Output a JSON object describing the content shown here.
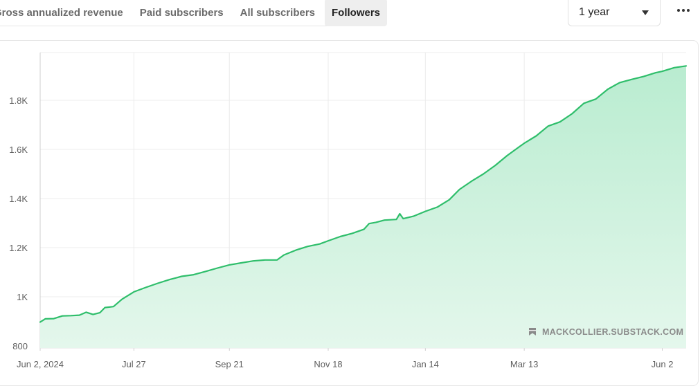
{
  "tabs": [
    {
      "label": "Gross annualized revenue",
      "active": false
    },
    {
      "label": "Paid subscribers",
      "active": false
    },
    {
      "label": "All subscribers",
      "active": false
    },
    {
      "label": "Followers",
      "active": true
    }
  ],
  "range_select": {
    "value": "1 year"
  },
  "colors": {
    "line": "#2fbe6b",
    "fill_top": "#b9ecd0",
    "fill_bottom": "#e4f7ec",
    "grid": "#ececec"
  },
  "chart_data": {
    "type": "area",
    "title": "",
    "xlabel": "",
    "ylabel": "",
    "ylim": [
      800,
      1950
    ],
    "grid": true,
    "y_ticks": [
      "800",
      "1K",
      "1.2K",
      "1.4K",
      "1.6K",
      "1.8K"
    ],
    "y_tick_values": [
      800,
      1000,
      1200,
      1400,
      1600,
      1800
    ],
    "x_ticks": [
      "Jun 2, 2024",
      "Jul 27",
      "Sep 21",
      "Nov 18",
      "Jan 14",
      "Mar 13",
      "Jun 2"
    ],
    "x_tick_values": [
      "2024-06-02",
      "2024-07-27",
      "2024-09-21",
      "2024-11-18",
      "2025-01-14",
      "2025-03-13",
      "2025-06-02"
    ],
    "x_range": [
      "2024-06-02",
      "2025-06-16"
    ],
    "series": [
      {
        "points": [
          [
            "2024-06-02",
            897
          ],
          [
            "2024-06-05",
            910
          ],
          [
            "2024-06-10",
            911
          ],
          [
            "2024-06-15",
            922
          ],
          [
            "2024-06-20",
            923
          ],
          [
            "2024-06-25",
            925
          ],
          [
            "2024-06-29",
            937
          ],
          [
            "2024-07-03",
            928
          ],
          [
            "2024-07-07",
            935
          ],
          [
            "2024-07-10",
            956
          ],
          [
            "2024-07-15",
            960
          ],
          [
            "2024-07-20",
            990
          ],
          [
            "2024-07-27",
            1020
          ],
          [
            "2024-08-03",
            1038
          ],
          [
            "2024-08-10",
            1055
          ],
          [
            "2024-08-17",
            1070
          ],
          [
            "2024-08-24",
            1083
          ],
          [
            "2024-08-31",
            1090
          ],
          [
            "2024-09-07",
            1103
          ],
          [
            "2024-09-14",
            1117
          ],
          [
            "2024-09-21",
            1130
          ],
          [
            "2024-09-28",
            1138
          ],
          [
            "2024-10-05",
            1146
          ],
          [
            "2024-10-12",
            1150
          ],
          [
            "2024-10-19",
            1150
          ],
          [
            "2024-10-23",
            1170
          ],
          [
            "2024-10-30",
            1190
          ],
          [
            "2024-11-06",
            1205
          ],
          [
            "2024-11-13",
            1215
          ],
          [
            "2024-11-18",
            1228
          ],
          [
            "2024-11-25",
            1245
          ],
          [
            "2024-12-02",
            1258
          ],
          [
            "2024-12-09",
            1275
          ],
          [
            "2024-12-12",
            1298
          ],
          [
            "2024-12-16",
            1303
          ],
          [
            "2024-12-21",
            1312
          ],
          [
            "2024-12-28",
            1315
          ],
          [
            "2024-12-30",
            1338
          ],
          [
            "2025-01-01",
            1318
          ],
          [
            "2025-01-07",
            1328
          ],
          [
            "2025-01-14",
            1348
          ],
          [
            "2025-01-21",
            1365
          ],
          [
            "2025-01-28",
            1395
          ],
          [
            "2025-02-03",
            1437
          ],
          [
            "2025-02-10",
            1470
          ],
          [
            "2025-02-17",
            1500
          ],
          [
            "2025-02-24",
            1535
          ],
          [
            "2025-03-03",
            1575
          ],
          [
            "2025-03-10",
            1610
          ],
          [
            "2025-03-13",
            1625
          ],
          [
            "2025-03-20",
            1655
          ],
          [
            "2025-03-27",
            1695
          ],
          [
            "2025-04-03",
            1712
          ],
          [
            "2025-04-10",
            1745
          ],
          [
            "2025-04-17",
            1788
          ],
          [
            "2025-04-24",
            1805
          ],
          [
            "2025-05-01",
            1845
          ],
          [
            "2025-05-08",
            1872
          ],
          [
            "2025-05-15",
            1885
          ],
          [
            "2025-05-22",
            1897
          ],
          [
            "2025-05-29",
            1912
          ],
          [
            "2025-06-02",
            1918
          ],
          [
            "2025-06-09",
            1933
          ],
          [
            "2025-06-16",
            1940
          ]
        ]
      }
    ]
  },
  "watermark": {
    "text": "MACKCOLLIER.SUBSTACK.COM",
    "icon": "bookmark-icon"
  }
}
